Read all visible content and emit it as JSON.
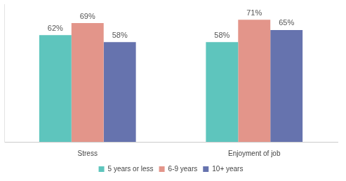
{
  "chart_data": {
    "type": "bar",
    "categories": [
      "Stress",
      "Enjoyment of job"
    ],
    "series": [
      {
        "name": "5 years or less",
        "color": "#5ec5bd",
        "values": [
          62,
          58
        ],
        "value_labels": [
          "62%",
          "58%"
        ]
      },
      {
        "name": "6-9 years",
        "color": "#e3958a",
        "values": [
          69,
          71
        ],
        "value_labels": [
          "69%",
          "71%"
        ]
      },
      {
        "name": "10+ years",
        "color": "#6673ae",
        "values": [
          58,
          65
        ],
        "value_labels": [
          "58%",
          "65%"
        ]
      }
    ],
    "ylim": [
      0,
      80
    ],
    "grid": false,
    "legend": "bottom",
    "data_labels": true,
    "tick_labels": "x"
  }
}
